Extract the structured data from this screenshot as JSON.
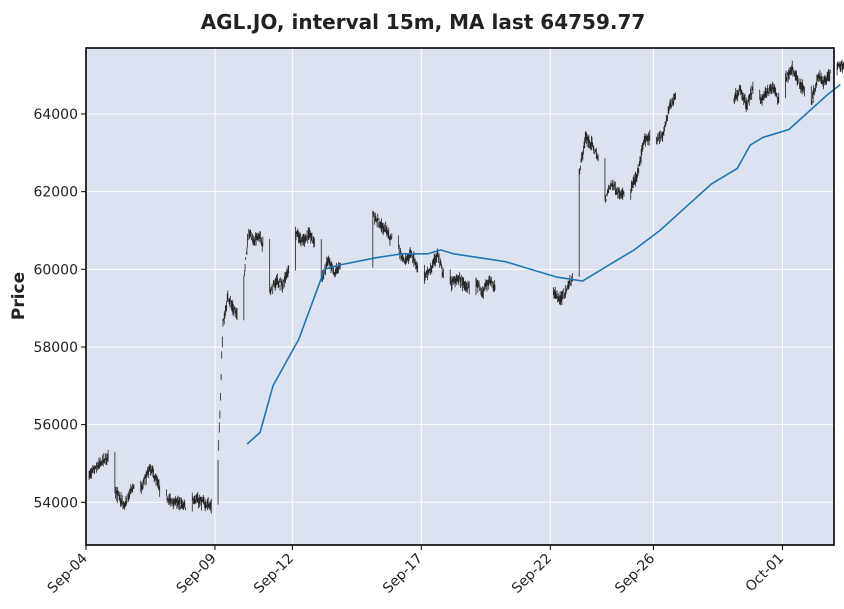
{
  "chart_data": {
    "type": "candlestick",
    "title": "AGL.JO, interval 15m, MA last 64759.77",
    "xlabel": "",
    "ylabel": "Price",
    "ylim": [
      52900,
      65700
    ],
    "yticks": [
      54000,
      56000,
      58000,
      60000,
      62000,
      64000
    ],
    "xlim": [
      "2025-09-04",
      "2025-10-03"
    ],
    "xticks": [
      "Sep-04",
      "Sep-09",
      "Sep-12",
      "Sep-17",
      "Sep-22",
      "Sep-26",
      "Oct-01"
    ],
    "grid": true,
    "colors": {
      "background": "#dce2ef",
      "grid": "#ffffff",
      "candles": "#222222",
      "ma": "#1f77b4",
      "frame": "#000000"
    },
    "series": [
      {
        "kind": "price",
        "points": [
          [
            "Sep-04",
            54700
          ],
          [
            "Sep-04",
            55200
          ],
          [
            "Sep-05",
            54300
          ],
          [
            "Sep-05",
            53900
          ],
          [
            "Sep-05",
            54500
          ],
          [
            "Sep-06",
            54300
          ],
          [
            "Sep-06",
            54900
          ],
          [
            "Sep-06",
            54300
          ],
          [
            "Sep-07",
            54100
          ],
          [
            "Sep-07",
            53900
          ],
          [
            "Sep-08",
            54100
          ],
          [
            "Sep-08",
            53900
          ],
          [
            "Sep-09",
            55000
          ],
          [
            "Sep-09",
            58600
          ],
          [
            "Sep-09",
            59300
          ],
          [
            "Sep-09",
            59000
          ],
          [
            "Sep-09",
            58800
          ],
          [
            "Sep-10",
            59800
          ],
          [
            "Sep-10",
            61000
          ],
          [
            "Sep-10",
            60700
          ],
          [
            "Sep-10",
            60900
          ],
          [
            "Sep-10",
            60600
          ],
          [
            "Sep-11",
            59400
          ],
          [
            "Sep-11",
            59700
          ],
          [
            "Sep-11",
            59600
          ],
          [
            "Sep-11",
            60000
          ],
          [
            "Sep-12",
            61000
          ],
          [
            "Sep-12",
            60700
          ],
          [
            "Sep-12",
            60900
          ],
          [
            "Sep-12",
            60700
          ],
          [
            "Sep-13",
            59700
          ],
          [
            "Sep-13",
            60200
          ],
          [
            "Sep-13",
            59900
          ],
          [
            "Sep-13",
            60100
          ],
          [
            "Sep-15",
            61400
          ],
          [
            "Sep-15",
            61200
          ],
          [
            "Sep-15",
            61000
          ],
          [
            "Sep-15",
            60700
          ],
          [
            "Sep-16",
            60500
          ],
          [
            "Sep-16",
            60200
          ],
          [
            "Sep-16",
            60400
          ],
          [
            "Sep-16",
            60000
          ],
          [
            "Sep-17",
            59800
          ],
          [
            "Sep-17",
            60000
          ],
          [
            "Sep-17",
            60400
          ],
          [
            "Sep-17",
            59800
          ],
          [
            "Sep-18",
            59600
          ],
          [
            "Sep-18",
            59800
          ],
          [
            "Sep-18",
            59600
          ],
          [
            "Sep-18",
            59500
          ],
          [
            "Sep-19",
            59700
          ],
          [
            "Sep-19",
            59400
          ],
          [
            "Sep-19",
            59700
          ],
          [
            "Sep-19",
            59500
          ],
          [
            "Sep-22",
            59400
          ],
          [
            "Sep-22",
            59200
          ],
          [
            "Sep-22",
            59500
          ],
          [
            "Sep-22",
            59800
          ],
          [
            "Sep-23",
            62500
          ],
          [
            "Sep-23",
            63400
          ],
          [
            "Sep-23",
            63200
          ],
          [
            "Sep-23",
            62800
          ],
          [
            "Sep-24",
            61800
          ],
          [
            "Sep-24",
            62200
          ],
          [
            "Sep-24",
            62000
          ],
          [
            "Sep-24",
            61900
          ],
          [
            "Sep-25",
            62100
          ],
          [
            "Sep-25",
            62400
          ],
          [
            "Sep-25",
            63300
          ],
          [
            "Sep-25",
            63400
          ],
          [
            "Sep-26",
            63300
          ],
          [
            "Sep-26",
            63500
          ],
          [
            "Sep-26",
            64200
          ],
          [
            "Sep-26",
            64500
          ],
          [
            "Sep-29",
            64400
          ],
          [
            "Sep-29",
            64600
          ],
          [
            "Sep-29",
            64200
          ],
          [
            "Sep-29",
            64700
          ],
          [
            "Sep-30",
            64300
          ],
          [
            "Sep-30",
            64600
          ],
          [
            "Sep-30",
            64700
          ],
          [
            "Sep-30",
            64300
          ],
          [
            "Oct-01",
            64900
          ],
          [
            "Oct-01",
            65200
          ],
          [
            "Oct-01",
            64800
          ],
          [
            "Oct-01",
            64600
          ],
          [
            "Oct-02",
            64300
          ],
          [
            "Oct-02",
            65000
          ],
          [
            "Oct-02",
            64800
          ],
          [
            "Oct-02",
            65100
          ],
          [
            "Oct-03",
            65300
          ],
          [
            "Oct-03",
            65100
          ]
        ]
      },
      {
        "kind": "moving-average",
        "points": [
          [
            "Sep-10",
            55500
          ],
          [
            "Sep-10",
            55800
          ],
          [
            "Sep-11",
            57000
          ],
          [
            "Sep-11",
            57600
          ],
          [
            "Sep-12",
            58200
          ],
          [
            "Sep-12",
            59100
          ],
          [
            "Sep-13",
            60000
          ],
          [
            "Sep-13",
            60100
          ],
          [
            "Sep-15",
            60300
          ],
          [
            "Sep-16",
            60400
          ],
          [
            "Sep-17",
            60400
          ],
          [
            "Sep-17",
            60500
          ],
          [
            "Sep-18",
            60400
          ],
          [
            "Sep-19",
            60300
          ],
          [
            "Sep-20",
            60200
          ],
          [
            "Sep-22",
            59800
          ],
          [
            "Sep-23",
            59700
          ],
          [
            "Sep-24",
            60100
          ],
          [
            "Sep-25",
            60500
          ],
          [
            "Sep-26",
            61000
          ],
          [
            "Sep-27",
            61600
          ],
          [
            "Sep-28",
            62200
          ],
          [
            "Sep-29",
            62600
          ],
          [
            "Sep-29",
            63200
          ],
          [
            "Sep-30",
            63400
          ],
          [
            "Oct-01",
            63600
          ],
          [
            "Oct-01",
            63900
          ],
          [
            "Oct-02",
            64200
          ],
          [
            "Oct-02",
            64500
          ],
          [
            "Oct-03",
            64760
          ]
        ]
      }
    ]
  }
}
